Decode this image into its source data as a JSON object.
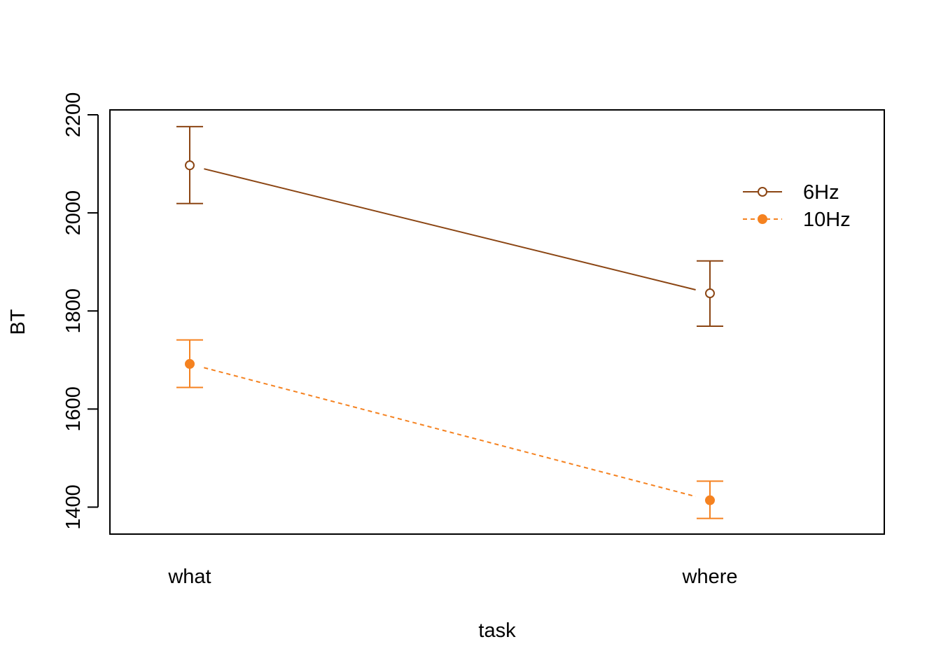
{
  "chart_data": {
    "type": "line",
    "xlabel": "task",
    "ylabel": "BT",
    "categories": [
      "what",
      "where"
    ],
    "ylim": [
      1345,
      2210
    ],
    "yticks": [
      1400,
      1600,
      1800,
      2000,
      2200
    ],
    "ytick_labels": [
      "1400",
      "1600",
      "1800",
      "2000",
      "2200"
    ],
    "legend_position": "top-right",
    "series": [
      {
        "name": "6Hz",
        "color": "#8B4513",
        "line_style": "solid",
        "marker": "open-circle",
        "values": [
          2097,
          1836
        ],
        "error_low": [
          2019,
          1769
        ],
        "error_high": [
          2176,
          1902
        ]
      },
      {
        "name": "10Hz",
        "color": "#F58220",
        "line_style": "dashed",
        "marker": "filled-circle",
        "values": [
          1692,
          1414
        ],
        "error_low": [
          1644,
          1377
        ],
        "error_high": [
          1741,
          1453
        ]
      }
    ]
  }
}
